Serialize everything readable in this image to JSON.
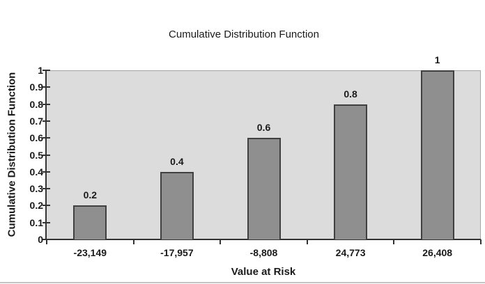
{
  "chart_data": {
    "type": "bar",
    "title": "Cumulative Distribution Function",
    "xlabel": "Value at Risk",
    "ylabel": "Cumulative Distribution Function",
    "categories": [
      "-23,149",
      "-17,957",
      "-8,808",
      "24,773",
      "26,408"
    ],
    "values": [
      0.2,
      0.4,
      0.6,
      0.8,
      1
    ],
    "data_labels": [
      "0.2",
      "0.4",
      "0.6",
      "0.8",
      "1"
    ],
    "y_tick_labels": [
      "0",
      "0.1",
      "0.2",
      "0.3",
      "0.4",
      "0.5",
      "0.6",
      "0.7",
      "0.8",
      "0.9",
      "1"
    ],
    "ylim": [
      0,
      1
    ],
    "grid": false,
    "legend": "none",
    "colors": {
      "bar_fill": "#8f8f8f",
      "bar_border": "#404040",
      "plot_bg": "#dcdcdc",
      "plot_border": "#a6a6a6",
      "axis_line": "#333333",
      "text": "#1a1a1a"
    }
  }
}
